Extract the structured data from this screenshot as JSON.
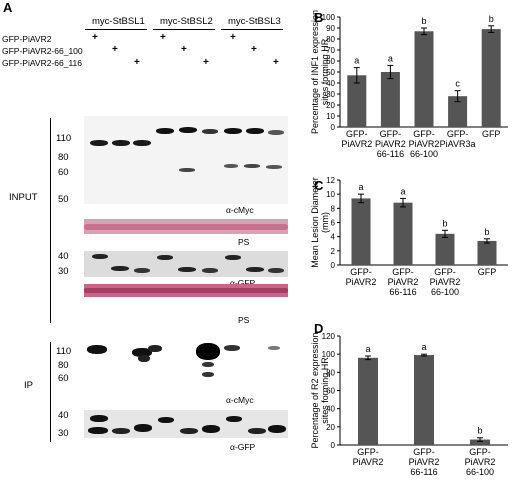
{
  "panel_a": {
    "letter": "A",
    "groups": [
      "myc-StBSL1",
      "myc-StBSL2",
      "myc-StBSL3"
    ],
    "rows": [
      "GFP-PiAVR2",
      "GFP-PiAVR2-66_100",
      "GFP-PiAVR2-66_116"
    ],
    "plus": "+",
    "input_label": "INPUT",
    "ip_label": "IP",
    "mw_input": [
      "110",
      "80",
      "60",
      "50"
    ],
    "mw_gfp": [
      "40",
      "30"
    ],
    "mw_ip": [
      "110",
      "80",
      "60"
    ],
    "mw_ip_gfp": [
      "40",
      "30"
    ],
    "blot_labels": {
      "cmyc": "α-cMyc",
      "ps1": "PS",
      "gfp": "α-GFP",
      "ps2": "PS",
      "ip_cmyc": "α-cMyc",
      "ip_gfp": "α-GFP"
    }
  },
  "chart_data": [
    {
      "type": "bar",
      "panel": "B",
      "categories": [
        "GFP-\nPiAVR2",
        "GFP-\nPiAVR2\n66-116",
        "GFP-\nPiAVR2\n66-100",
        "GFP-\nPiAVR3a",
        "GFP"
      ],
      "values": [
        47,
        50,
        87,
        28,
        89
      ],
      "errors": [
        7,
        6,
        3,
        5,
        3
      ],
      "significance": [
        "a",
        "a",
        "b",
        "c",
        "b"
      ],
      "ylabel": "Percentage of INF1 expression\nsites forming HR",
      "ylim": [
        0,
        100
      ],
      "yticks": [
        0,
        10,
        20,
        30,
        40,
        50,
        60,
        70,
        80,
        90,
        100
      ]
    },
    {
      "type": "bar",
      "panel": "C",
      "categories": [
        "GFP-\nPiAVR2",
        "GFP-\nPiAVR2\n66-116",
        "GFP-\nPiAVR2\n66-100",
        "GFP"
      ],
      "values": [
        9.4,
        8.8,
        4.4,
        3.4
      ],
      "errors": [
        0.6,
        0.6,
        0.5,
        0.3
      ],
      "significance": [
        "a",
        "a",
        "b",
        "b"
      ],
      "ylabel": "Mean Lesion Diameter\n(mm)",
      "ylim": [
        0,
        12
      ],
      "yticks": [
        0,
        2,
        4,
        6,
        8,
        10,
        12
      ]
    },
    {
      "type": "bar",
      "panel": "D",
      "categories": [
        "GFP-\nPiAVR2",
        "GFP-\nPiAVR2\n66-116",
        "GFP-\nPiAVR2\n66-100"
      ],
      "values": [
        96,
        99,
        6
      ],
      "errors": [
        2,
        1,
        2
      ],
      "significance": [
        "a",
        "a",
        "b"
      ],
      "ylabel": "Percentage of R2 expression\nsites forming HR",
      "ylim": [
        0,
        120
      ],
      "yticks": [
        0,
        20,
        40,
        60,
        80,
        100,
        120
      ]
    }
  ]
}
